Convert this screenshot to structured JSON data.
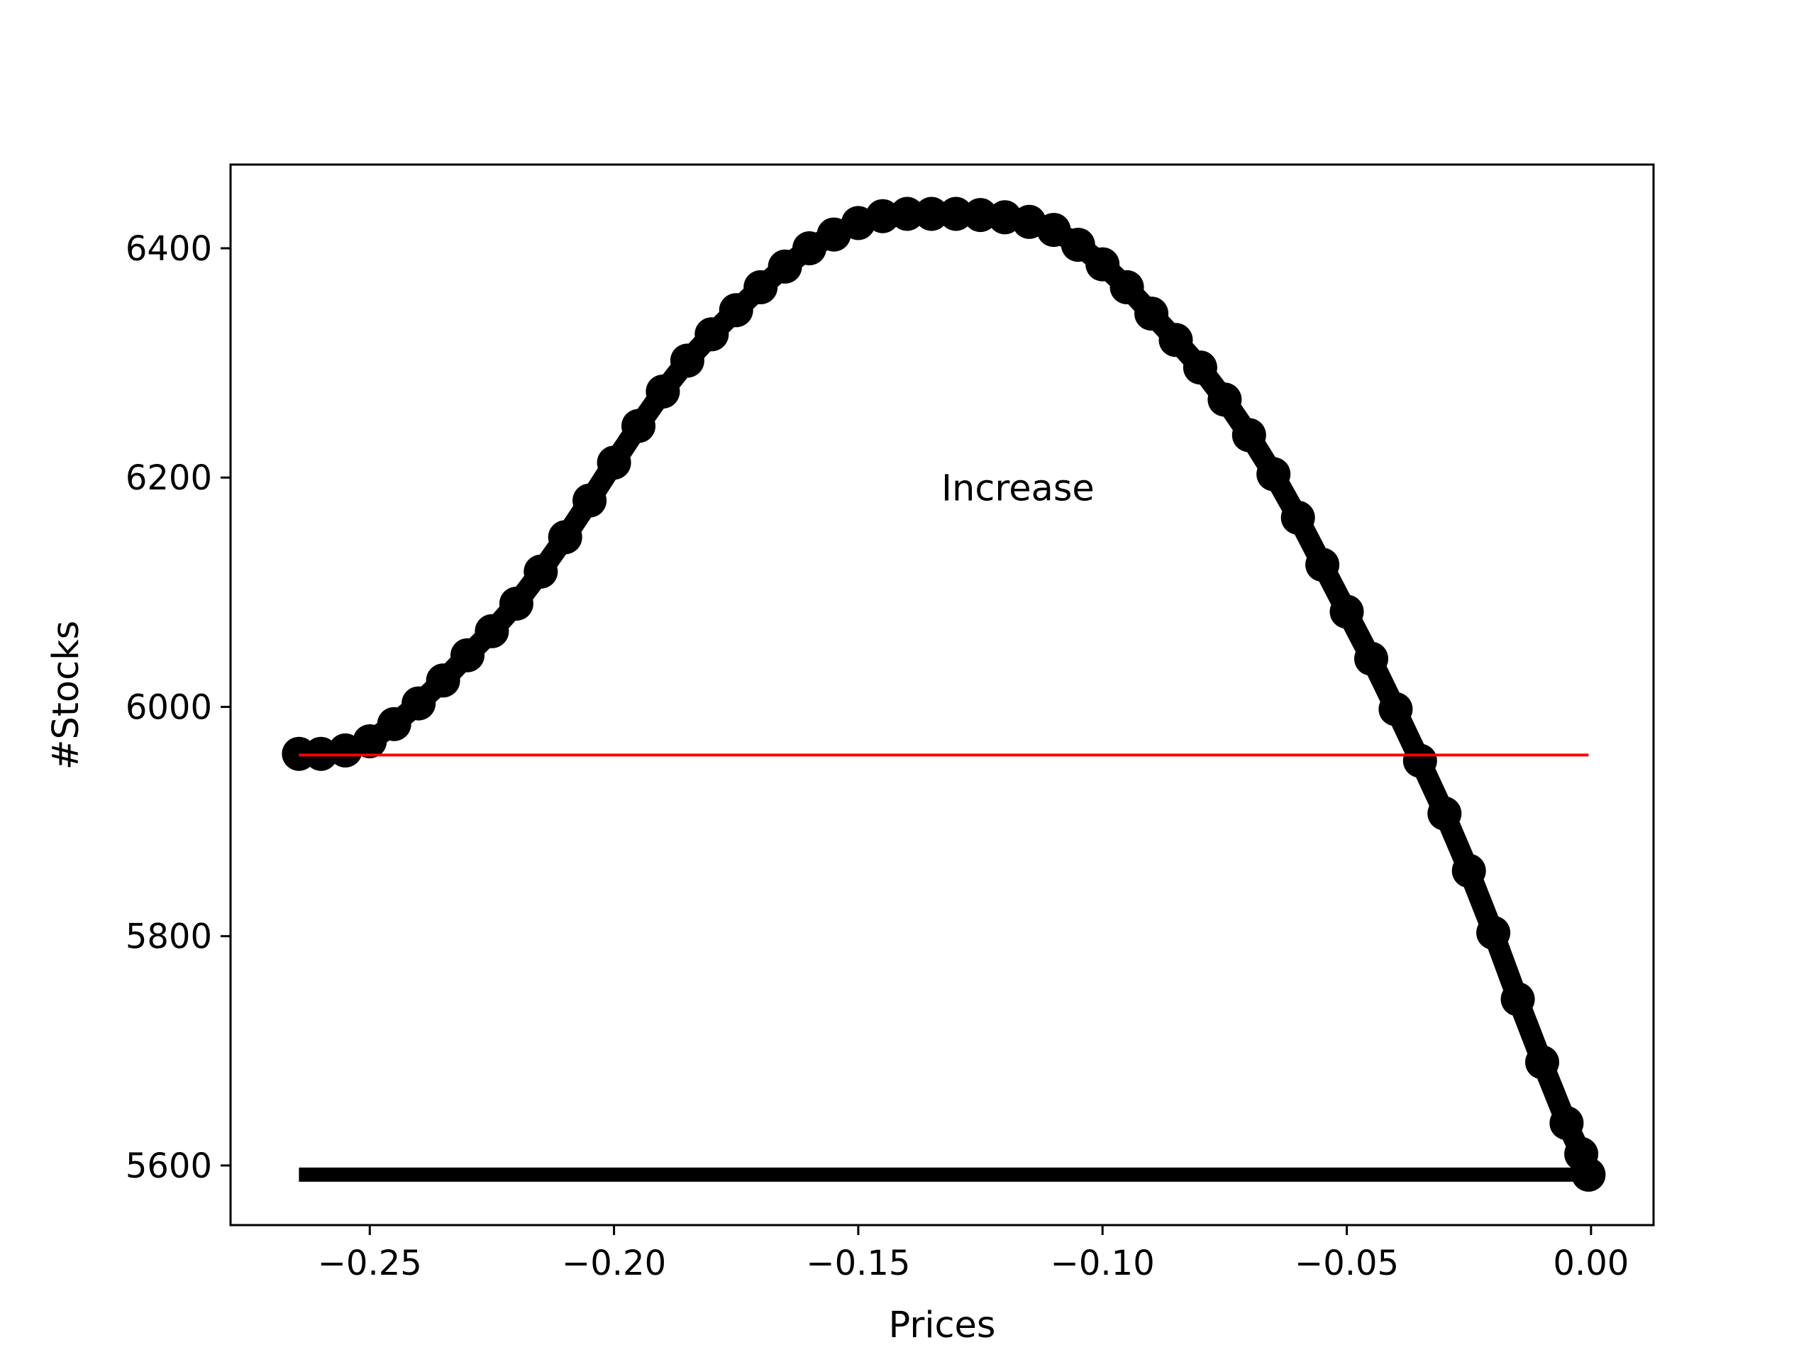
{
  "chart_data": {
    "type": "line",
    "title": "",
    "xlabel": "Prices",
    "ylabel": "#Stocks",
    "xlim": [
      -0.2785,
      0.0128
    ],
    "ylim": [
      5548,
      6473
    ],
    "grid": false,
    "legend": "none",
    "x_ticks": [
      -0.25,
      -0.2,
      -0.15,
      -0.1,
      -0.05,
      0.0
    ],
    "x_tick_labels": [
      "−0.25",
      "−0.20",
      "−0.15",
      "−0.10",
      "−0.05",
      "0.00"
    ],
    "y_ticks": [
      5600,
      5800,
      6000,
      6200,
      6400
    ],
    "y_tick_labels": [
      "5600",
      "5800",
      "6000",
      "6200",
      "6400"
    ],
    "annotations": [
      {
        "text": "Increase",
        "x": -0.133,
        "y": 6180
      }
    ],
    "series": [
      {
        "style": "marker-line",
        "color": "#000000",
        "x": [
          -0.2645,
          -0.26,
          -0.255,
          -0.25,
          -0.245,
          -0.24,
          -0.235,
          -0.23,
          -0.225,
          -0.22,
          -0.215,
          -0.21,
          -0.205,
          -0.2,
          -0.195,
          -0.19,
          -0.185,
          -0.18,
          -0.175,
          -0.17,
          -0.165,
          -0.16,
          -0.155,
          -0.15,
          -0.145,
          -0.14,
          -0.135,
          -0.13,
          -0.125,
          -0.12,
          -0.115,
          -0.11,
          -0.105,
          -0.1,
          -0.095,
          -0.09,
          -0.085,
          -0.08,
          -0.075,
          -0.07,
          -0.065,
          -0.06,
          -0.055,
          -0.05,
          -0.045,
          -0.04,
          -0.035,
          -0.03,
          -0.025,
          -0.02,
          -0.015,
          -0.01,
          -0.005,
          -0.002,
          -0.0005
        ],
        "y": [
          5959,
          5959,
          5962,
          5970,
          5985,
          6003,
          6023,
          6045,
          6066,
          6090,
          6118,
          6148,
          6180,
          6213,
          6245,
          6275,
          6302,
          6325,
          6346,
          6366,
          6384,
          6400,
          6412,
          6422,
          6428,
          6430,
          6430,
          6430,
          6429,
          6427,
          6423,
          6416,
          6403,
          6386,
          6366,
          6343,
          6320,
          6296,
          6268,
          6237,
          6203,
          6165,
          6124,
          6083,
          6042,
          5998,
          5953,
          5907,
          5857,
          5803,
          5745,
          5690,
          5637,
          5610,
          5592
        ]
      },
      {
        "style": "line",
        "color": "#ff0000",
        "x": [
          -0.2645,
          -0.0005
        ],
        "y": [
          5958,
          5958
        ]
      },
      {
        "style": "thick-line",
        "color": "#000000",
        "x": [
          -0.2645,
          -0.0005
        ],
        "y": [
          5592,
          5592
        ]
      }
    ]
  }
}
